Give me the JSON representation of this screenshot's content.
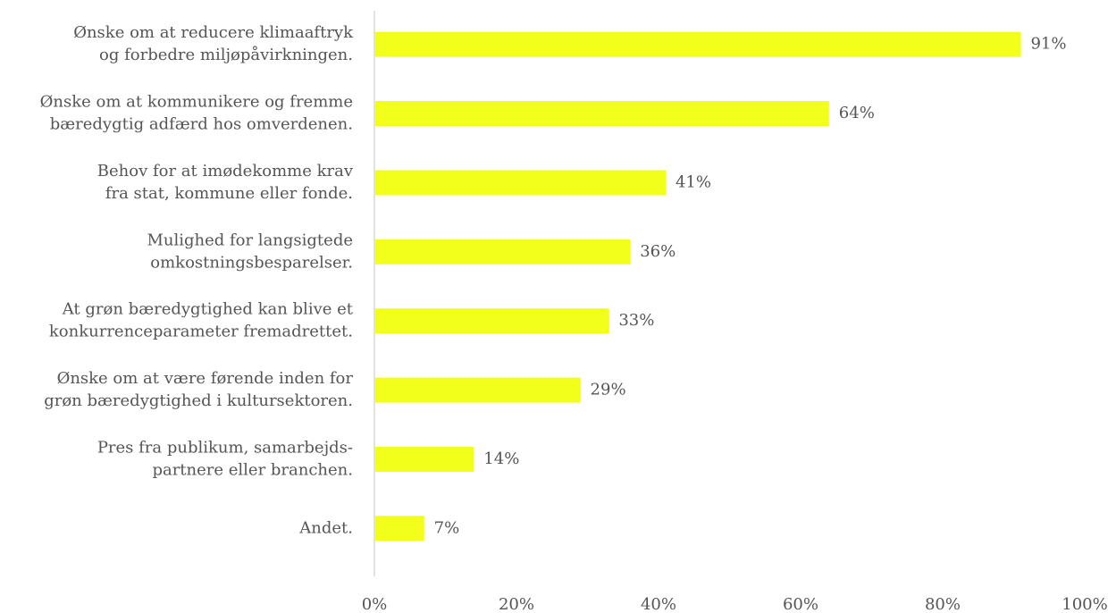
{
  "chart_data": {
    "type": "barh",
    "categories": [
      [
        "Ønske om at reducere klimaaftryk",
        "og forbedre miljøpåvirkningen."
      ],
      [
        "Ønske om at kommunikere og fremme",
        "bæredygtig adfærd hos omverdenen."
      ],
      [
        "Behov for at imødekomme krav",
        "fra stat, kommune eller fonde."
      ],
      [
        "Mulighed for langsigtede",
        "omkostningsbesparelser."
      ],
      [
        "At grøn bæredygtighed kan blive et",
        "konkurrenceparameter fremadrettet."
      ],
      [
        "Ønske om at være førende inden for",
        "grøn bæredygtighed i kultursektoren."
      ],
      [
        "Pres fra publikum, samarbejds-",
        "partnere eller branchen."
      ],
      [
        "Andet."
      ]
    ],
    "values": [
      91,
      64,
      41,
      36,
      33,
      29,
      14,
      7
    ],
    "value_labels": [
      "91%",
      "64%",
      "41%",
      "36%",
      "33%",
      "29%",
      "14%",
      "7%"
    ],
    "color": "#f2ff1a",
    "xlim": [
      0,
      100
    ],
    "xticks": [
      {
        "value": 0,
        "label": "0%"
      },
      {
        "value": 20,
        "label": "20%"
      },
      {
        "value": 40,
        "label": "40%"
      },
      {
        "value": 60,
        "label": "60%"
      },
      {
        "value": 80,
        "label": "80%"
      },
      {
        "value": 100,
        "label": "100%"
      }
    ],
    "grid": false
  }
}
